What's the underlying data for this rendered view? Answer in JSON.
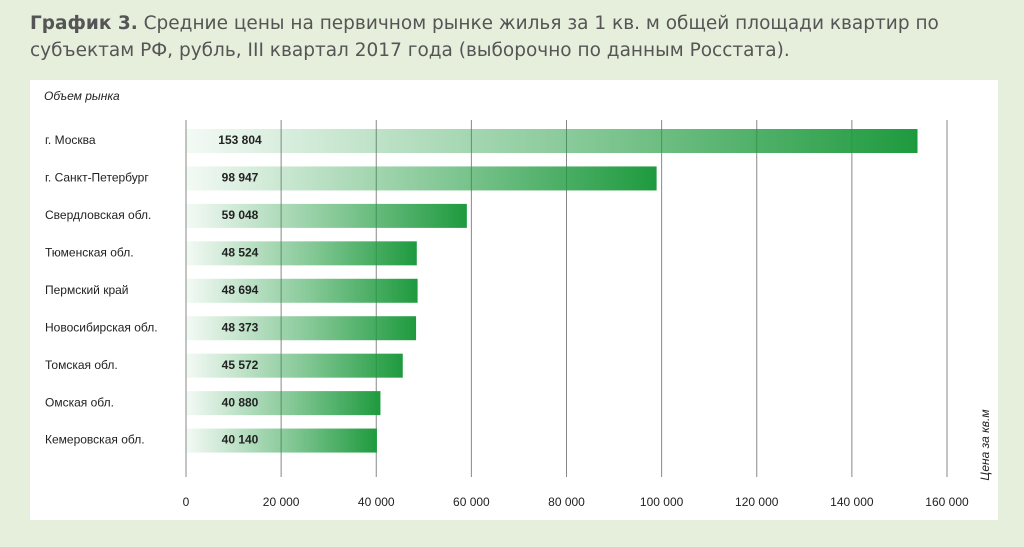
{
  "chart_data": {
    "type": "bar",
    "orientation": "horizontal",
    "title_prefix": "График 3.",
    "title": "Средние цены на первичном рынке жилья за 1 кв. м общей площади квартир по субъектам РФ, рубль, III квартал 2017 года (выборочно по данным Росстата).",
    "y_label": "Объем рынка",
    "x_label": "Цена за кв.м",
    "categories": [
      "г. Москва",
      "г. Санкт-Петербург",
      "Свердловская обл.",
      "Тюменская обл.",
      "Пермский край",
      "Новосибирская обл.",
      "Томская обл.",
      "Омская обл.",
      "Кемеровская обл."
    ],
    "values": [
      153804,
      98947,
      59048,
      48524,
      48694,
      48373,
      45572,
      40880,
      40140
    ],
    "value_labels": [
      "153 804",
      "98 947",
      "59 048",
      "48 524",
      "48 694",
      "48 373",
      "45 572",
      "40 880",
      "40 140"
    ],
    "color": "#1e9a3e",
    "xlim": [
      0,
      160000
    ],
    "xticks": [
      0,
      {
        "value": 20000,
        "label": "20 000"
      },
      {
        "value": 40000,
        "label": "40 000"
      },
      {
        "value": 60000,
        "label": "60 000"
      },
      {
        "value": 80000,
        "label": "80 000"
      },
      {
        "value": 100000,
        "label": "100 000"
      },
      {
        "value": 120000,
        "label": "120 000"
      },
      {
        "value": 140000,
        "label": "140 000"
      },
      {
        "value": 160000,
        "label": "160 000"
      }
    ],
    "grid": true
  }
}
